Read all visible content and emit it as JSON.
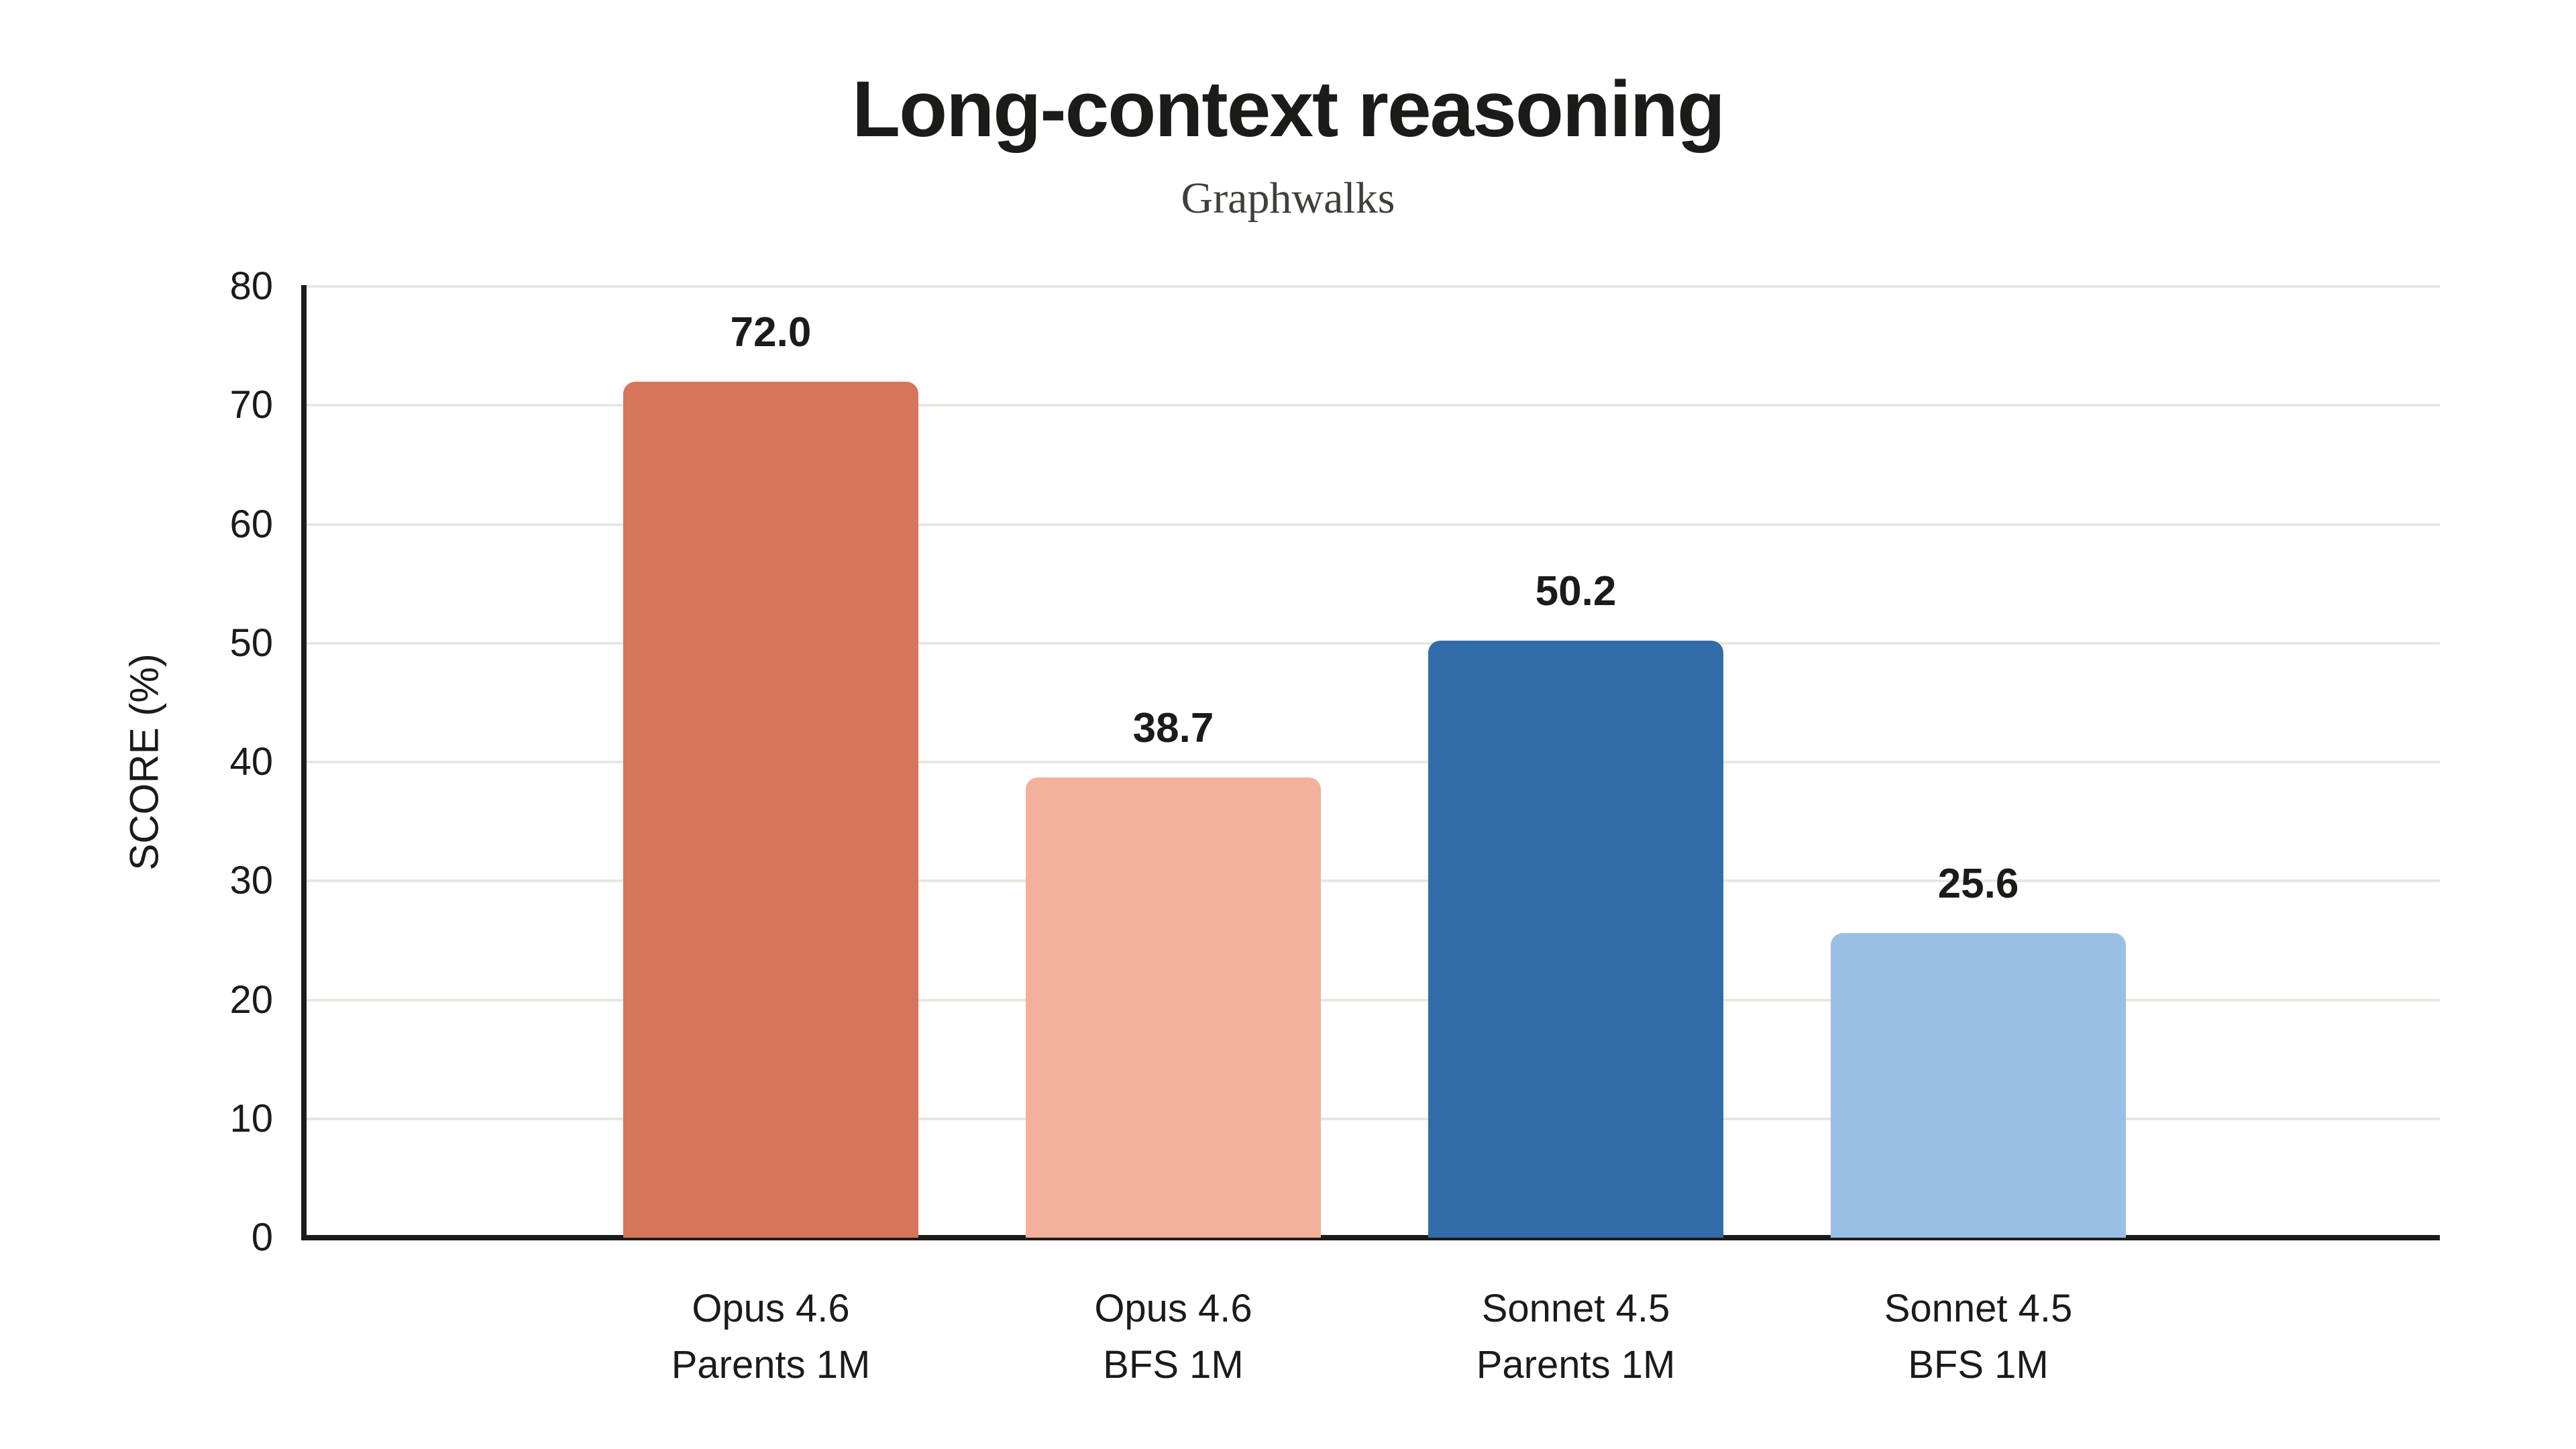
{
  "page": {
    "background": "#ffffff"
  },
  "chart_data": {
    "type": "bar",
    "title": "Long-context reasoning",
    "subtitle": "Graphwalks",
    "ylabel": "SCORE (%)",
    "xlabel": "",
    "ylim": [
      0,
      80
    ],
    "yticks": [
      0,
      10,
      20,
      30,
      40,
      50,
      60,
      70,
      80
    ],
    "grid": "horizontal",
    "legend_position": "none",
    "categories": [
      [
        "Opus 4.6",
        "Parents 1M"
      ],
      [
        "Opus 4.6",
        "BFS 1M"
      ],
      [
        "Sonnet 4.5",
        "Parents 1M"
      ],
      [
        "Sonnet 4.5",
        "BFS 1M"
      ]
    ],
    "values": [
      72.0,
      38.7,
      50.2,
      25.6
    ],
    "value_labels": [
      "72.0",
      "38.7",
      "50.2",
      "25.6"
    ],
    "bar_colors": [
      "#D5755A",
      "#F3B09A",
      "#326CA9",
      "#9ABFE4"
    ],
    "colors": {
      "axis": "#1b1b19",
      "grid": "#e9e6df",
      "text": "#1b1b19",
      "subtitle_text": "#413f3b"
    }
  }
}
